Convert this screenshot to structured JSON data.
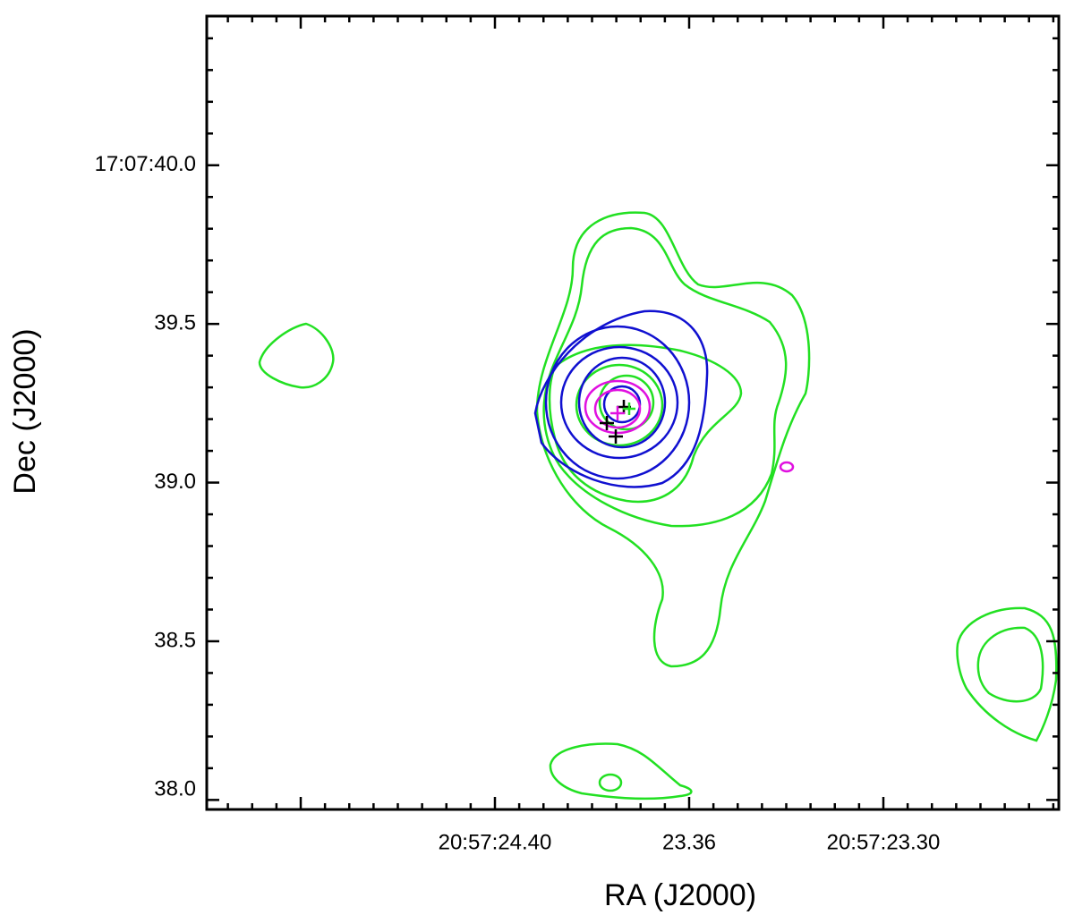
{
  "chart_data": {
    "type": "contour",
    "xlabel": "RA (J2000)",
    "ylabel": "Dec (J2000)",
    "xtick_labels": [
      "20:57:24.40",
      "23.36",
      "20:57:23.30"
    ],
    "ylim": [
      37.97,
      40.47
    ],
    "yticks": [
      {
        "value": 40,
        "label": "17:07:40.0"
      },
      39.5,
      {
        "value": 39,
        "label": "39.0"
      },
      38.5,
      {
        "value": 38,
        "label": "38.0"
      }
    ]
  }
}
